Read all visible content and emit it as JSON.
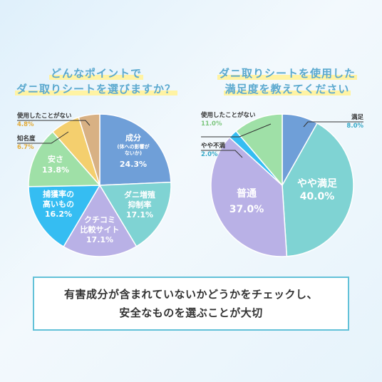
{
  "charts": {
    "left_title_line1": "どんなポイントで",
    "left_title_line2": "ダニ取りシートを選びますか？",
    "right_title_line1": "ダニ取りシートを使用した",
    "right_title_line2": "満足度を教えてください"
  },
  "callout": {
    "line1": "有害成分が含まれていないかどうかをチェックし、",
    "line2": "安全なものを選ぶことが大切"
  },
  "chart_data": [
    {
      "type": "pie",
      "title": "どんなポイントでダニ取りシートを選びますか？",
      "slices": [
        {
          "label": "成分",
          "sublabel": "(体への影響がないか)",
          "value": 24.3,
          "display": "24.3%",
          "color": "#6f9fd8"
        },
        {
          "label": "ダニ増殖抑制率",
          "value": 17.1,
          "display": "17.1%",
          "color": "#7fd3d3"
        },
        {
          "label": "クチコミ比較サイト",
          "value": 17.1,
          "display": "17.1%",
          "color": "#b9b1e6"
        },
        {
          "label": "捕獲率の高いもの",
          "value": 16.2,
          "display": "16.2%",
          "color": "#35bdf2"
        },
        {
          "label": "安さ",
          "value": 13.8,
          "display": "13.8%",
          "color": "#9fe0a7"
        },
        {
          "label": "知名度",
          "value": 6.7,
          "display": "6.7%",
          "color": "#f4cf6e"
        },
        {
          "label": "使用したことがない",
          "value": 4.8,
          "display": "4.8%",
          "color": "#d8b184"
        }
      ]
    },
    {
      "type": "pie",
      "title": "ダニ取りシートを使用した満足度を教えてください",
      "slices": [
        {
          "label": "満足",
          "value": 8.0,
          "display": "8.0%",
          "color": "#6f9fd8"
        },
        {
          "label": "やや満足",
          "value": 40.0,
          "display": "40.0%",
          "color": "#7fd3d3"
        },
        {
          "label": "普通",
          "value": 37.0,
          "display": "37.0%",
          "color": "#b9b1e6"
        },
        {
          "label": "やや不満",
          "value": 2.0,
          "display": "2.0%",
          "color": "#35bdf2"
        },
        {
          "label": "使用したことがない",
          "value": 11.0,
          "display": "11.0%",
          "color": "#9fe0a7"
        }
      ]
    }
  ],
  "colors": {
    "title": "#5ba9cf",
    "highlight": "#fff3a3",
    "callout_border": "#62c1d8",
    "outside_label_left_a": "#e3ac3a",
    "outside_label_left_b": "#e3ac3a",
    "outside_label_right": "#36a9c8"
  }
}
